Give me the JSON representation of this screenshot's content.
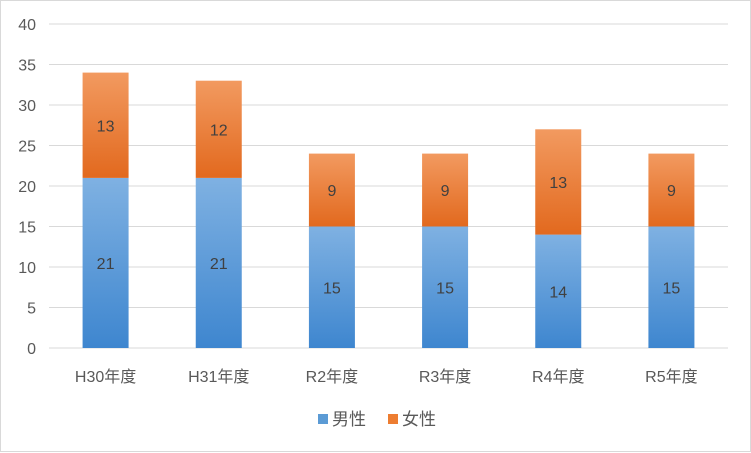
{
  "chart_data": {
    "type": "bar",
    "stacked": true,
    "categories": [
      "H30年度",
      "H31年度",
      "R2年度",
      "R3年度",
      "R4年度",
      "R5年度"
    ],
    "series": [
      {
        "name": "男性",
        "values": [
          21,
          21,
          15,
          15,
          14,
          15
        ],
        "color": "#5b9bd5"
      },
      {
        "name": "女性",
        "values": [
          13,
          12,
          9,
          9,
          13,
          9
        ],
        "color": "#ed7d31"
      }
    ],
    "yticks": [
      0,
      5,
      10,
      15,
      20,
      25,
      30,
      35,
      40
    ],
    "ylim": [
      0,
      40
    ],
    "grid": true,
    "legend_position": "bottom",
    "data_labels": true
  }
}
